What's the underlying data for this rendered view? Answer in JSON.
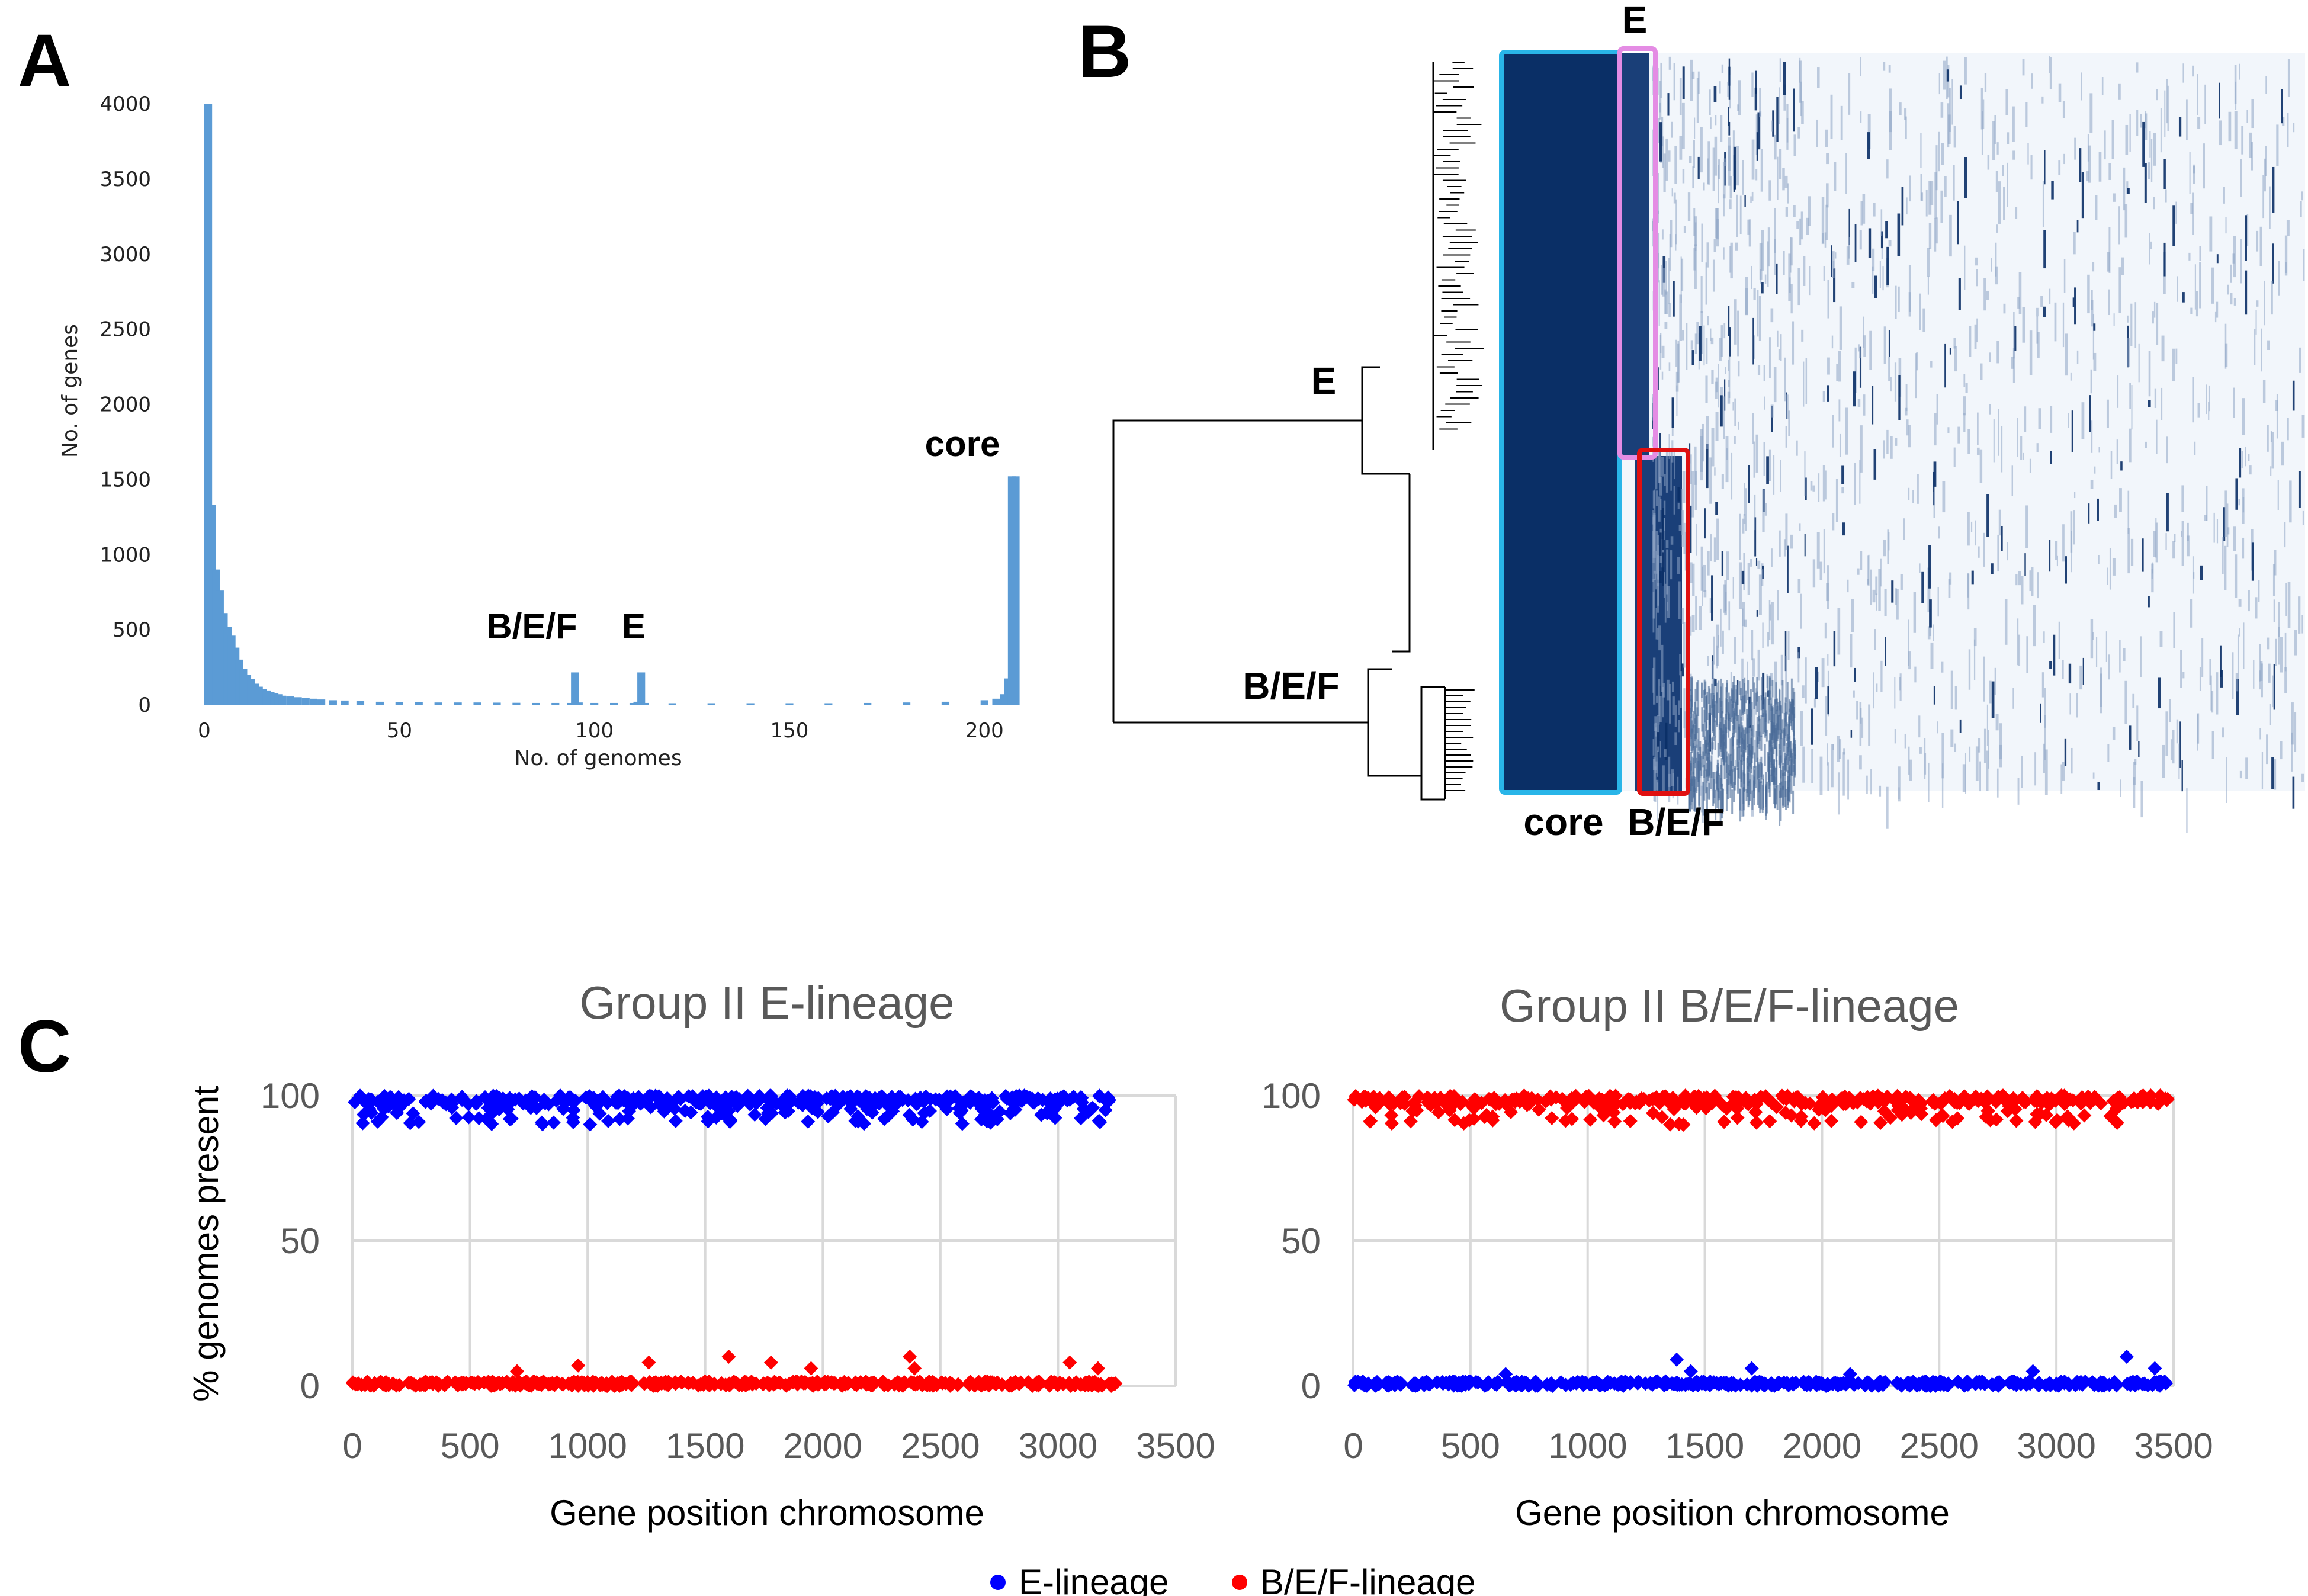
{
  "panel_labels": {
    "a": "A",
    "b": "B",
    "c": "C"
  },
  "colors": {
    "histogram": "#5b9bd5",
    "heatmap_fill": "#0a2f66",
    "heatmap_bg": "#f2f6fb",
    "core_box": "#29b5e8",
    "e_box": "#e48ce4",
    "bef_box": "#e01010",
    "e_lineage": "#0000ff",
    "bef_lineage": "#ff0000",
    "gridline": "#d9d9d9"
  },
  "chart_data": [
    {
      "id": "panel-a",
      "type": "bar",
      "title": "",
      "xlabel": "No. of genomes",
      "ylabel": "No. of genes",
      "xlim": [
        0,
        208
      ],
      "ylim": [
        0,
        4000
      ],
      "xticks": [
        "0",
        "50",
        "100",
        "150",
        "200"
      ],
      "yticks": [
        "0",
        "500",
        "1000",
        "1500",
        "2000",
        "2500",
        "3000",
        "3500",
        "4000"
      ],
      "series": [
        {
          "name": "genes",
          "x": [
            1,
            2,
            3,
            4,
            5,
            6,
            7,
            8,
            9,
            10,
            11,
            12,
            13,
            14,
            15,
            16,
            17,
            18,
            19,
            20,
            22,
            24,
            26,
            28,
            30,
            33,
            36,
            40,
            45,
            50,
            55,
            60,
            65,
            70,
            75,
            80,
            85,
            90,
            94,
            95,
            96,
            100,
            105,
            110,
            111,
            112,
            113,
            120,
            130,
            140,
            150,
            160,
            170,
            180,
            190,
            200,
            203,
            205,
            206,
            207,
            208
          ],
          "values": [
            4000,
            1330,
            900,
            760,
            610,
            520,
            460,
            380,
            300,
            240,
            200,
            170,
            140,
            120,
            105,
            95,
            85,
            75,
            70,
            60,
            55,
            50,
            45,
            40,
            35,
            30,
            28,
            25,
            20,
            18,
            18,
            15,
            15,
            15,
            14,
            13,
            12,
            12,
            12,
            215,
            15,
            12,
            12,
            12,
            20,
            215,
            12,
            10,
            10,
            10,
            10,
            10,
            12,
            15,
            20,
            30,
            40,
            70,
            175,
            1520,
            1520
          ]
        }
      ],
      "annotations": [
        {
          "text": "core",
          "at": 207
        },
        {
          "text": "B/E/F",
          "at": 95
        },
        {
          "text": "E",
          "at": 112
        }
      ]
    },
    {
      "id": "panel-b",
      "type": "heatmap",
      "description": "gene presence/absence matrix ordered by phylogeny",
      "labels": {
        "clade_e": "E",
        "clade_bef": "B/E/F",
        "box_e": "E",
        "box_core": "core",
        "box_bef": "B/E/F"
      }
    },
    {
      "id": "panel-c-left",
      "type": "scatter",
      "title": "Group II E-lineage",
      "xlabel": "Gene position chromosome",
      "ylabel": "% genomes present",
      "xlim": [
        0,
        3500
      ],
      "ylim": [
        0,
        100
      ],
      "xticks": [
        "0",
        "500",
        "1000",
        "1500",
        "2000",
        "2500",
        "3000",
        "3500"
      ],
      "yticks": [
        "0",
        "50",
        "100"
      ],
      "series": [
        {
          "name": "E-lineage",
          "high_range": [
            0,
            3250
          ],
          "low_points": [],
          "high_values_min": 90
        },
        {
          "name": "B/E/F-lineage",
          "low_range": [
            0,
            3250
          ],
          "low_outliers": [
            [
              700,
              5
            ],
            [
              960,
              7
            ],
            [
              1260,
              8
            ],
            [
              1600,
              10
            ],
            [
              1780,
              8
            ],
            [
              1950,
              6
            ],
            [
              2370,
              10
            ],
            [
              2390,
              6
            ],
            [
              3050,
              8
            ],
            [
              3170,
              6
            ]
          ]
        }
      ]
    },
    {
      "id": "panel-c-right",
      "type": "scatter",
      "title": "Group II B/E/F-lineage",
      "xlabel": "Gene position chromosome",
      "ylabel": "",
      "xlim": [
        0,
        3500
      ],
      "ylim": [
        0,
        100
      ],
      "xticks": [
        "0",
        "500",
        "1000",
        "1500",
        "2000",
        "2500",
        "3000",
        "3500"
      ],
      "yticks": [
        "0",
        "50",
        "100"
      ],
      "series": [
        {
          "name": "B/E/F-lineage",
          "high_range": [
            0,
            3480
          ],
          "high_values_min": 90
        },
        {
          "name": "E-lineage",
          "low_range": [
            0,
            3480
          ],
          "low_outliers": [
            [
              650,
              4
            ],
            [
              1380,
              9
            ],
            [
              1440,
              5
            ],
            [
              1700,
              6
            ],
            [
              2120,
              4
            ],
            [
              2900,
              5
            ],
            [
              3300,
              10
            ],
            [
              3420,
              6
            ]
          ]
        }
      ]
    }
  ],
  "legend": {
    "e_label": "E-lineage",
    "bef_label": "B/E/F-lineage"
  }
}
